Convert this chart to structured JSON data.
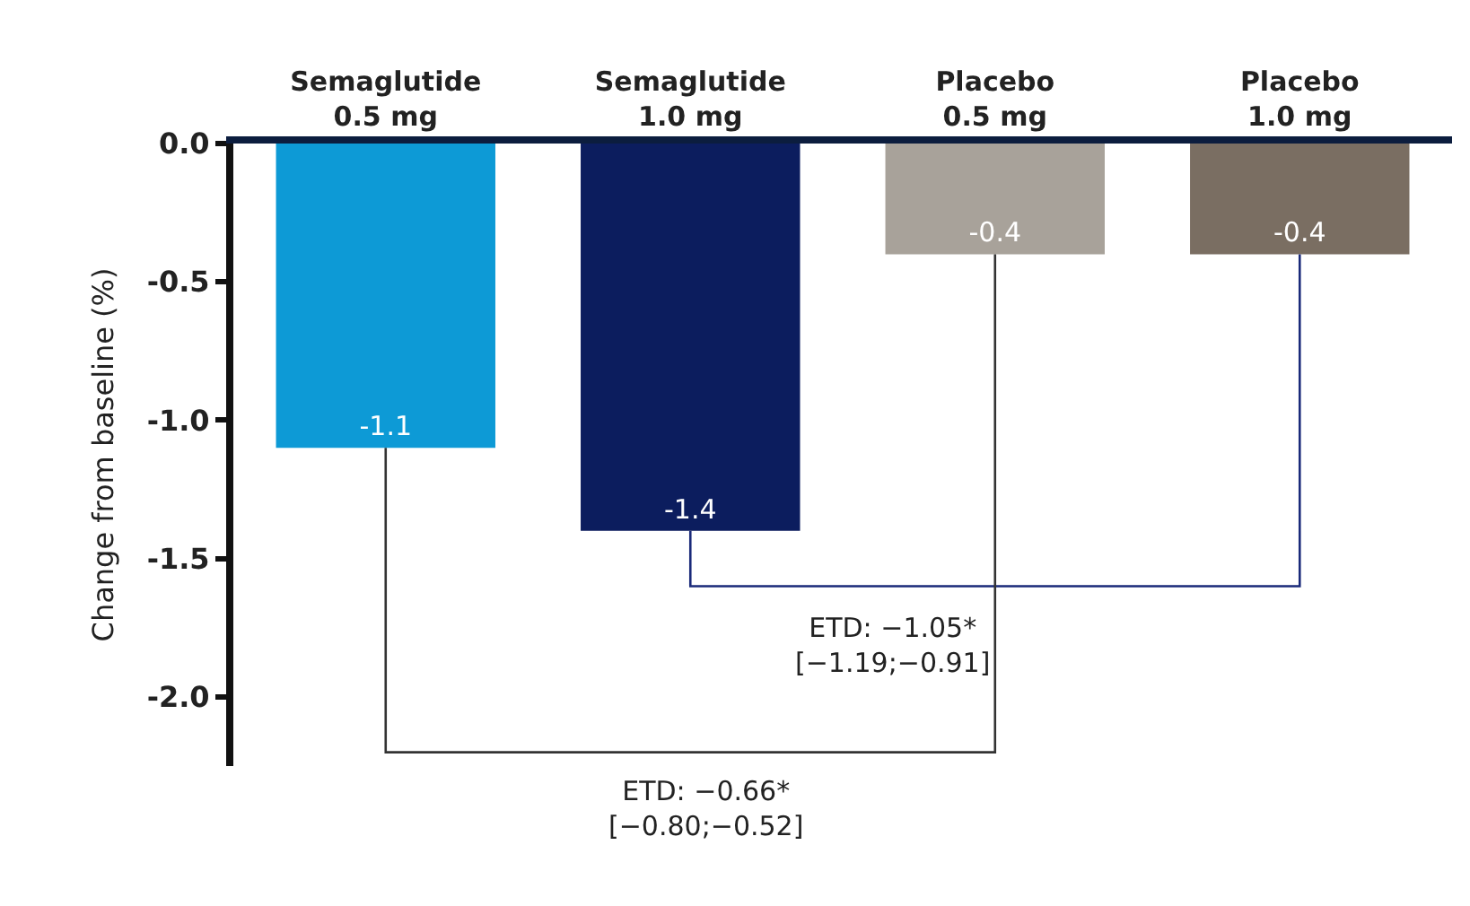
{
  "chart_data": {
    "type": "bar",
    "ylabel": "Change from baseline (%)",
    "categories": [
      "Semaglutide\n0.5 mg",
      "Semaglutide\n1.0 mg",
      "Placebo\n0.5 mg",
      "Placebo\n1.0 mg"
    ],
    "values": [
      -1.1,
      -1.4,
      -0.4,
      -0.4
    ],
    "colors": [
      "#0d9ad6",
      "#0c1d5e",
      "#a8a29a",
      "#7a6e62"
    ],
    "data_labels": true,
    "ylim": [
      -2.25,
      0
    ],
    "yticks": [
      {
        "value": 0,
        "label": "0.0"
      },
      {
        "value": -0.5,
        "label": "-0.5"
      },
      {
        "value": -1.0,
        "label": "-1.0"
      },
      {
        "value": -1.5,
        "label": "-1.5"
      },
      {
        "value": -2.0,
        "label": "-2.0"
      }
    ],
    "annotations": [
      "ETD: −1.05*\n[−1.19;−0.91]",
      "ETD: −0.66*\n[−0.80;−0.52]"
    ]
  }
}
